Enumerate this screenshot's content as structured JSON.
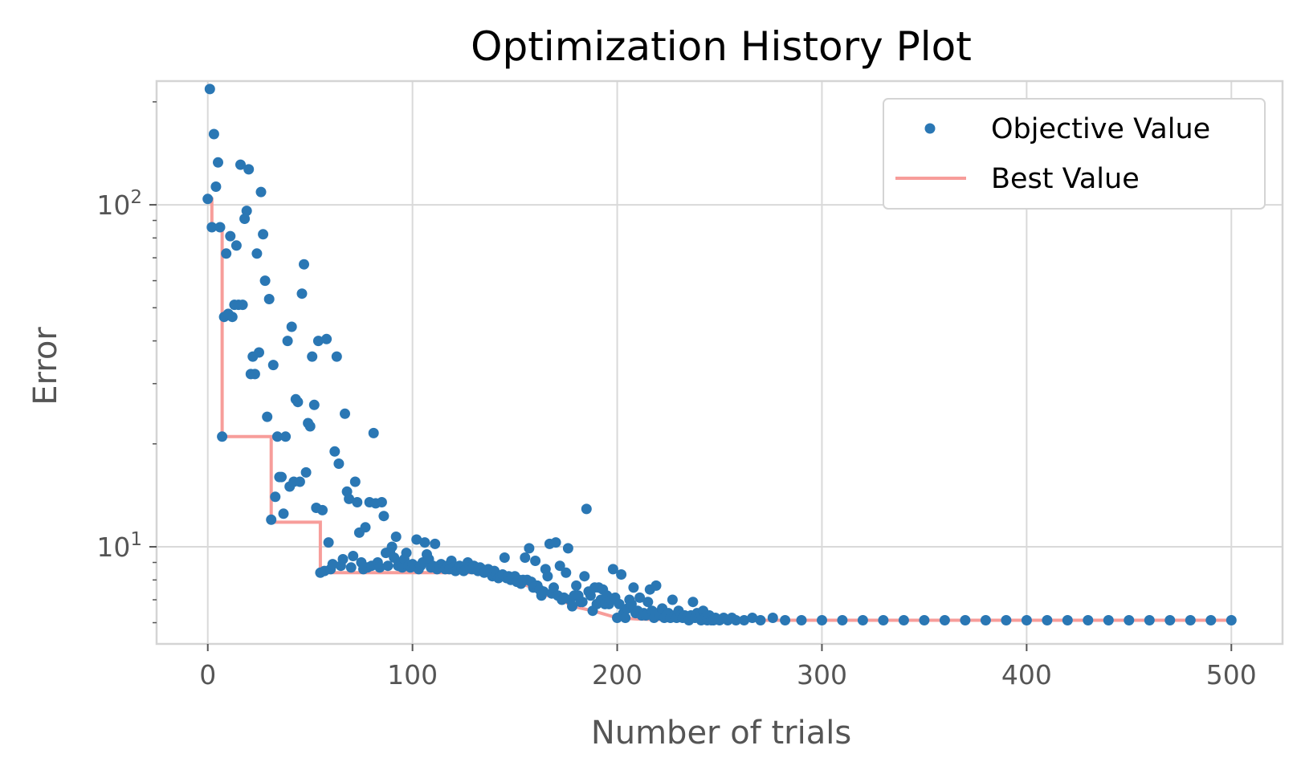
{
  "chart_data": {
    "type": "scatter",
    "title": "Optimization History Plot",
    "xlabel": "Number of trials",
    "ylabel": "Error",
    "xlim": [
      -25,
      525
    ],
    "ylim": [
      5.2,
      230
    ],
    "yscale": "log",
    "grid": true,
    "legend": {
      "placement": "top-right",
      "entries": [
        "Objective Value",
        "Best Value"
      ]
    },
    "x_ticks": [
      0,
      100,
      200,
      300,
      400,
      500
    ],
    "x_tick_labels": [
      "0",
      "100",
      "200",
      "300",
      "400",
      "500"
    ],
    "y_ticks": [
      10,
      100
    ],
    "y_tick_labels": [
      {
        "base": "10",
        "exp": "1"
      },
      {
        "base": "10",
        "exp": "2"
      }
    ],
    "y_minor_ticks": [
      6,
      7,
      8,
      9,
      20,
      30,
      40,
      50,
      60,
      70,
      80,
      90,
      200
    ],
    "colors": {
      "objective": "#2a77b4",
      "best": "#f79d9a",
      "grid": "#d9d9d9",
      "frame": "#d4d4d4",
      "text": "#555555"
    },
    "series": [
      {
        "name": "Objective Value",
        "kind": "scatter",
        "points": [
          [
            0,
            104
          ],
          [
            1,
            218
          ],
          [
            2,
            86
          ],
          [
            3,
            161
          ],
          [
            4,
            113
          ],
          [
            5,
            133
          ],
          [
            6,
            86
          ],
          [
            7,
            21
          ],
          [
            8,
            47
          ],
          [
            9,
            72
          ],
          [
            10,
            48
          ],
          [
            11,
            81
          ],
          [
            12,
            47
          ],
          [
            13,
            51
          ],
          [
            14,
            76
          ],
          [
            15,
            51
          ],
          [
            16,
            131
          ],
          [
            17,
            51
          ],
          [
            18,
            91
          ],
          [
            19,
            96
          ],
          [
            20,
            127
          ],
          [
            21,
            32
          ],
          [
            22,
            36
          ],
          [
            23,
            32
          ],
          [
            24,
            72
          ],
          [
            25,
            37
          ],
          [
            26,
            109
          ],
          [
            27,
            82
          ],
          [
            28,
            60
          ],
          [
            29,
            24
          ],
          [
            30,
            53
          ],
          [
            31,
            12
          ],
          [
            32,
            34
          ],
          [
            33,
            14
          ],
          [
            34,
            21
          ],
          [
            35,
            16
          ],
          [
            36,
            16
          ],
          [
            37,
            12.5
          ],
          [
            38,
            21
          ],
          [
            39,
            40
          ],
          [
            40,
            15
          ],
          [
            41,
            44
          ],
          [
            42,
            15.5
          ],
          [
            43,
            27
          ],
          [
            44,
            26.5
          ],
          [
            45,
            15.5
          ],
          [
            46,
            55
          ],
          [
            47,
            67
          ],
          [
            48,
            16.5
          ],
          [
            49,
            23
          ],
          [
            50,
            22.5
          ],
          [
            51,
            36
          ],
          [
            52,
            26
          ],
          [
            53,
            13
          ],
          [
            54,
            40
          ],
          [
            55,
            8.4
          ],
          [
            56,
            12.8
          ],
          [
            57,
            8.5
          ],
          [
            58,
            40.5
          ],
          [
            59,
            10.3
          ],
          [
            60,
            8.6
          ],
          [
            61,
            8.9
          ],
          [
            62,
            19
          ],
          [
            63,
            36
          ],
          [
            64,
            17.5
          ],
          [
            65,
            8.8
          ],
          [
            66,
            9.2
          ],
          [
            67,
            24.5
          ],
          [
            68,
            14.5
          ],
          [
            69,
            13.8
          ],
          [
            70,
            8.7
          ],
          [
            71,
            9.4
          ],
          [
            72,
            15.5
          ],
          [
            73,
            13.5
          ],
          [
            74,
            11
          ],
          [
            75,
            9
          ],
          [
            76,
            8.6
          ],
          [
            77,
            11.4
          ],
          [
            78,
            8.7
          ],
          [
            79,
            13.5
          ],
          [
            80,
            8.8
          ],
          [
            81,
            21.5
          ],
          [
            82,
            13.4
          ],
          [
            83,
            9
          ],
          [
            84,
            8.7
          ],
          [
            85,
            13.5
          ],
          [
            86,
            12.3
          ],
          [
            87,
            9.6
          ],
          [
            88,
            8.8
          ],
          [
            89,
            9.7
          ],
          [
            90,
            10
          ],
          [
            91,
            9.3
          ],
          [
            92,
            10.7
          ],
          [
            93,
            8.8
          ],
          [
            94,
            9
          ],
          [
            95,
            8.7
          ],
          [
            96,
            9.2
          ],
          [
            97,
            9.6
          ],
          [
            98,
            8.8
          ],
          [
            99,
            8.7
          ],
          [
            100,
            8.9
          ],
          [
            101,
            8.8
          ],
          [
            102,
            10.5
          ],
          [
            103,
            8.6
          ],
          [
            104,
            8.8
          ],
          [
            105,
            9
          ],
          [
            106,
            10.3
          ],
          [
            107,
            9.5
          ],
          [
            108,
            9.2
          ],
          [
            109,
            8.7
          ],
          [
            110,
            8.8
          ],
          [
            111,
            10.2
          ],
          [
            112,
            8.6
          ],
          [
            113,
            8.8
          ],
          [
            114,
            8.9
          ],
          [
            115,
            8.7
          ],
          [
            116,
            8.6
          ],
          [
            117,
            8.8
          ],
          [
            118,
            8.6
          ],
          [
            119,
            9.1
          ],
          [
            120,
            8.7
          ],
          [
            121,
            8.5
          ],
          [
            122,
            8.6
          ],
          [
            123,
            8.8
          ],
          [
            124,
            8.7
          ],
          [
            125,
            8.5
          ],
          [
            126,
            8.6
          ],
          [
            127,
            9
          ],
          [
            128,
            8.7
          ],
          [
            129,
            8.6
          ],
          [
            130,
            8.8
          ],
          [
            131,
            8.6
          ],
          [
            132,
            8.5
          ],
          [
            133,
            8.7
          ],
          [
            134,
            8.6
          ],
          [
            135,
            8.4
          ],
          [
            136,
            8.5
          ],
          [
            137,
            8.6
          ],
          [
            138,
            8.4
          ],
          [
            139,
            8.2
          ],
          [
            140,
            8.5
          ],
          [
            141,
            8.3
          ],
          [
            142,
            8.1
          ],
          [
            143,
            8.2
          ],
          [
            144,
            8.3
          ],
          [
            145,
            9.3
          ],
          [
            146,
            8.1
          ],
          [
            147,
            8.2
          ],
          [
            148,
            8
          ],
          [
            149,
            8.1
          ],
          [
            150,
            8.2
          ],
          [
            151,
            7.9
          ],
          [
            152,
            8
          ],
          [
            153,
            7.8
          ],
          [
            154,
            8
          ],
          [
            155,
            9.3
          ],
          [
            156,
            8
          ],
          [
            157,
            9.9
          ],
          [
            158,
            7.9
          ],
          [
            159,
            7.6
          ],
          [
            160,
            9.1
          ],
          [
            161,
            7.7
          ],
          [
            162,
            7.5
          ],
          [
            163,
            7.2
          ],
          [
            164,
            7.4
          ],
          [
            165,
            8.6
          ],
          [
            166,
            8.2
          ],
          [
            167,
            10.2
          ],
          [
            168,
            7.3
          ],
          [
            169,
            7.6
          ],
          [
            170,
            10.3
          ],
          [
            171,
            7.2
          ],
          [
            172,
            8.8
          ],
          [
            173,
            7
          ],
          [
            174,
            7.1
          ],
          [
            175,
            8.4
          ],
          [
            176,
            9.9
          ],
          [
            177,
            7
          ],
          [
            178,
            6.7
          ],
          [
            179,
            7.2
          ],
          [
            180,
            7.7
          ],
          [
            181,
            7.2
          ],
          [
            182,
            6.9
          ],
          [
            183,
            6.9
          ],
          [
            184,
            8.2
          ],
          [
            185,
            12.9
          ],
          [
            186,
            7.4
          ],
          [
            187,
            7.2
          ],
          [
            188,
            6.5
          ],
          [
            189,
            7.6
          ],
          [
            190,
            6.8
          ],
          [
            191,
            7.6
          ],
          [
            192,
            7
          ],
          [
            193,
            7.5
          ],
          [
            194,
            6.8
          ],
          [
            195,
            7.2
          ],
          [
            196,
            6.8
          ],
          [
            197,
            7
          ],
          [
            198,
            8.6
          ],
          [
            199,
            7.1
          ],
          [
            200,
            6.2
          ],
          [
            201,
            6.8
          ],
          [
            202,
            8.3
          ],
          [
            203,
            6.4
          ],
          [
            204,
            6.2
          ],
          [
            205,
            6.6
          ],
          [
            206,
            7
          ],
          [
            207,
            6.8
          ],
          [
            208,
            7.6
          ],
          [
            209,
            6.4
          ],
          [
            210,
            6.5
          ],
          [
            211,
            7.1
          ],
          [
            212,
            6.3
          ],
          [
            213,
            6.4
          ],
          [
            214,
            6.3
          ],
          [
            215,
            6.9
          ],
          [
            216,
            7.5
          ],
          [
            217,
            6.5
          ],
          [
            218,
            6.2
          ],
          [
            219,
            7.7
          ],
          [
            220,
            6.4
          ],
          [
            221,
            6.3
          ],
          [
            222,
            6.6
          ],
          [
            223,
            6.2
          ],
          [
            224,
            6.3
          ],
          [
            225,
            6.4
          ],
          [
            226,
            6.2
          ],
          [
            227,
            7
          ],
          [
            228,
            6.3
          ],
          [
            229,
            6.2
          ],
          [
            230,
            6.5
          ],
          [
            231,
            6.3
          ],
          [
            232,
            6.2
          ],
          [
            233,
            6.3
          ],
          [
            234,
            6.2
          ],
          [
            235,
            6.1
          ],
          [
            236,
            6.3
          ],
          [
            237,
            6.9
          ],
          [
            238,
            6.2
          ],
          [
            239,
            6.4
          ],
          [
            240,
            6.2
          ],
          [
            241,
            6.1
          ],
          [
            242,
            6.5
          ],
          [
            243,
            6.2
          ],
          [
            244,
            6.1
          ],
          [
            245,
            6.3
          ],
          [
            246,
            6.1
          ],
          [
            247,
            6.1
          ],
          [
            248,
            6.2
          ],
          [
            250,
            6.1
          ],
          [
            252,
            6.2
          ],
          [
            254,
            6.1
          ],
          [
            256,
            6.2
          ],
          [
            258,
            6.1
          ],
          [
            262,
            6.1
          ],
          [
            266,
            6.2
          ],
          [
            270,
            6.1
          ],
          [
            276,
            6.2
          ],
          [
            282,
            6.1
          ],
          [
            290,
            6.1
          ],
          [
            300,
            6.1
          ],
          [
            310,
            6.1
          ],
          [
            320,
            6.1
          ],
          [
            330,
            6.1
          ],
          [
            340,
            6.1
          ],
          [
            350,
            6.1
          ],
          [
            360,
            6.1
          ],
          [
            370,
            6.1
          ],
          [
            380,
            6.1
          ],
          [
            390,
            6.1
          ],
          [
            400,
            6.1
          ],
          [
            410,
            6.1
          ],
          [
            420,
            6.1
          ],
          [
            430,
            6.1
          ],
          [
            440,
            6.1
          ],
          [
            450,
            6.1
          ],
          [
            460,
            6.1
          ],
          [
            470,
            6.1
          ],
          [
            480,
            6.1
          ],
          [
            490,
            6.1
          ],
          [
            500,
            6.1
          ]
        ]
      },
      {
        "name": "Best Value",
        "kind": "line",
        "points": [
          [
            0,
            104
          ],
          [
            2,
            104
          ],
          [
            2,
            86
          ],
          [
            7,
            86
          ],
          [
            7,
            21
          ],
          [
            31,
            21
          ],
          [
            31,
            11.8
          ],
          [
            55,
            11.8
          ],
          [
            55,
            8.4
          ],
          [
            135,
            8.4
          ],
          [
            139,
            8.2
          ],
          [
            142,
            8.1
          ],
          [
            148,
            8
          ],
          [
            151,
            7.9
          ],
          [
            153,
            7.8
          ],
          [
            159,
            7.6
          ],
          [
            162,
            7.5
          ],
          [
            163,
            7.2
          ],
          [
            171,
            7.2
          ],
          [
            173,
            7
          ],
          [
            178,
            6.7
          ],
          [
            188,
            6.5
          ],
          [
            200,
            6.2
          ],
          [
            210,
            6.15
          ],
          [
            235,
            6.1
          ],
          [
            500,
            6.1
          ]
        ]
      }
    ]
  }
}
